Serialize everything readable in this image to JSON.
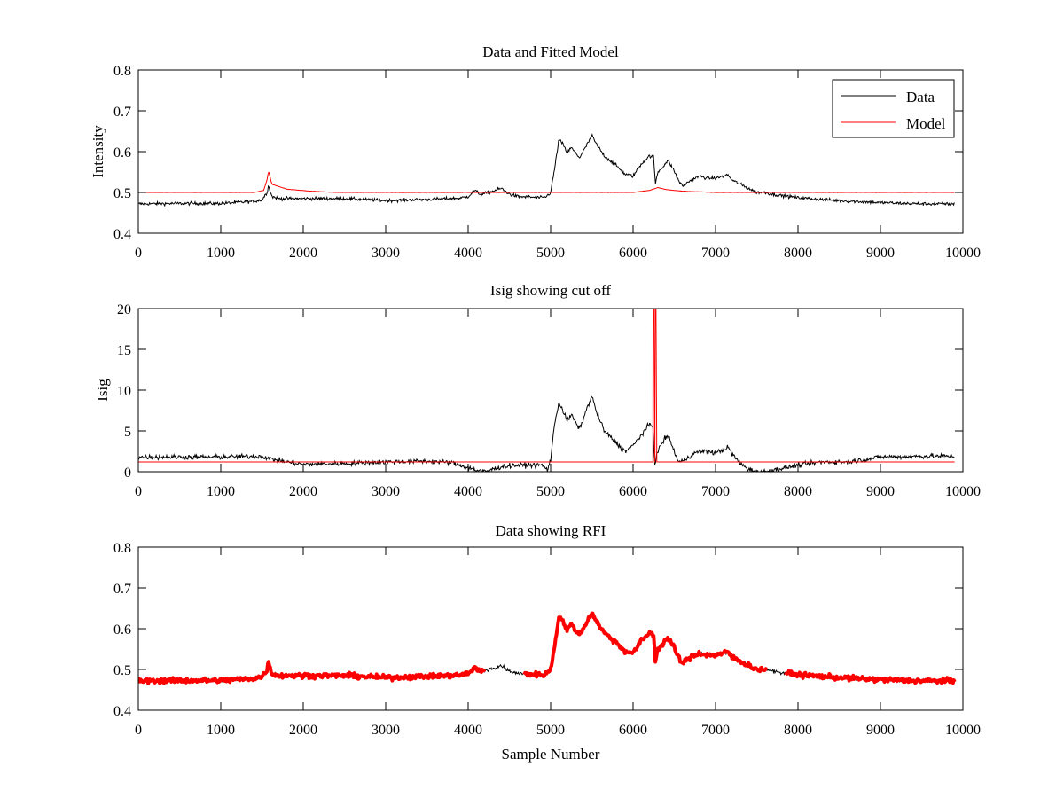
{
  "chart_data": [
    {
      "type": "line",
      "title": "Data and Fitted Model",
      "xlabel": "",
      "ylabel": "Intensity",
      "xlim": [
        0,
        10000
      ],
      "ylim": [
        0.4,
        0.8
      ],
      "xticks": [
        0,
        1000,
        2000,
        3000,
        4000,
        5000,
        6000,
        7000,
        8000,
        9000,
        10000
      ],
      "yticks": [
        0.4,
        0.5,
        0.6,
        0.7,
        0.8
      ],
      "legend": {
        "placement": "top-right",
        "entries": [
          "Data",
          "Model"
        ]
      },
      "series": [
        {
          "name": "Data",
          "color": "#000000",
          "noise": 0.004,
          "x": [
            0,
            500,
            1000,
            1400,
            1500,
            1560,
            1580,
            1620,
            1700,
            2000,
            2500,
            3000,
            3500,
            3900,
            4000,
            4080,
            4150,
            4250,
            4400,
            4500,
            4600,
            4900,
            4950,
            5000,
            5050,
            5100,
            5150,
            5200,
            5250,
            5350,
            5450,
            5500,
            5550,
            5650,
            5800,
            5900,
            6000,
            6100,
            6200,
            6250,
            6270,
            6300,
            6350,
            6420,
            6480,
            6550,
            6600,
            6700,
            6800,
            6900,
            7000,
            7100,
            7150,
            7200,
            7300,
            7400,
            7500,
            7600,
            7700,
            8000,
            8500,
            9000,
            9500,
            9900
          ],
          "y": [
            0.472,
            0.473,
            0.473,
            0.478,
            0.482,
            0.5,
            0.517,
            0.49,
            0.485,
            0.485,
            0.485,
            0.48,
            0.483,
            0.486,
            0.49,
            0.505,
            0.495,
            0.5,
            0.51,
            0.496,
            0.49,
            0.487,
            0.49,
            0.5,
            0.56,
            0.63,
            0.618,
            0.597,
            0.61,
            0.585,
            0.62,
            0.64,
            0.62,
            0.59,
            0.565,
            0.545,
            0.54,
            0.57,
            0.59,
            0.585,
            0.52,
            0.55,
            0.56,
            0.578,
            0.56,
            0.53,
            0.515,
            0.53,
            0.54,
            0.535,
            0.535,
            0.54,
            0.543,
            0.53,
            0.52,
            0.51,
            0.5,
            0.5,
            0.495,
            0.487,
            0.48,
            0.475,
            0.472,
            0.472
          ]
        },
        {
          "name": "Model",
          "color": "#ff0000",
          "noise": 0.0004,
          "x": [
            0,
            1400,
            1520,
            1560,
            1580,
            1620,
            1800,
            2100,
            2400,
            4000,
            6000,
            6200,
            6300,
            6400,
            6600,
            7000,
            9900
          ],
          "y": [
            0.5,
            0.5,
            0.505,
            0.53,
            0.552,
            0.52,
            0.508,
            0.503,
            0.5,
            0.5,
            0.5,
            0.505,
            0.512,
            0.507,
            0.503,
            0.5,
            0.5
          ]
        }
      ]
    },
    {
      "type": "line",
      "title": "Isig showing cut off",
      "xlabel": "",
      "ylabel": "Isig",
      "xlim": [
        0,
        10000
      ],
      "ylim": [
        0,
        20
      ],
      "xticks": [
        0,
        1000,
        2000,
        3000,
        4000,
        5000,
        6000,
        7000,
        8000,
        9000,
        10000
      ],
      "yticks": [
        0,
        5,
        10,
        15,
        20
      ],
      "series": [
        {
          "color": "#000000",
          "noise": 0.3,
          "x": [
            0,
            500,
            1000,
            1500,
            1600,
            1800,
            2000,
            2500,
            3000,
            3500,
            3800,
            4000,
            4100,
            4200,
            4300,
            4400,
            4600,
            4900,
            4960,
            5000,
            5050,
            5100,
            5150,
            5200,
            5250,
            5350,
            5450,
            5500,
            5550,
            5650,
            5800,
            5900,
            6000,
            6100,
            6200,
            6240,
            6260,
            6300,
            6350,
            6420,
            6480,
            6550,
            6600,
            6700,
            6800,
            6900,
            7000,
            7100,
            7150,
            7200,
            7300,
            7400,
            7500,
            7600,
            7700,
            8000,
            8300,
            8600,
            8800,
            9000,
            9500,
            9900
          ],
          "y": [
            1.8,
            1.8,
            1.8,
            1.9,
            1.6,
            1.2,
            0.9,
            1.0,
            1.2,
            1.3,
            1.1,
            0.5,
            0.2,
            0.0,
            0.3,
            0.6,
            0.8,
            0.8,
            0.2,
            1.5,
            6.0,
            8.5,
            7.5,
            6.2,
            7.0,
            5.2,
            8.0,
            9.3,
            7.5,
            5.0,
            3.5,
            2.5,
            3.2,
            4.5,
            5.8,
            5.5,
            1.0,
            2.5,
            3.5,
            4.5,
            3.0,
            1.2,
            1.3,
            2.0,
            2.5,
            2.5,
            2.3,
            2.7,
            3.0,
            2.2,
            1.0,
            0.3,
            0.0,
            0.0,
            0.2,
            0.8,
            1.2,
            1.2,
            1.5,
            1.8,
            1.9,
            1.9
          ]
        },
        {
          "color": "#ff0000",
          "noise": 0,
          "x": [
            0,
            6240,
            6242,
            6252,
            6262,
            6265,
            6268,
            6278,
            6288,
            6290,
            9900
          ],
          "y": [
            1.2,
            1.2,
            20,
            20,
            1.2,
            1.2,
            20,
            20,
            1.2,
            1.2,
            1.2
          ]
        }
      ]
    },
    {
      "type": "line",
      "title": "Data showing RFI",
      "xlabel": "Sample Number",
      "ylabel": "",
      "xlim": [
        0,
        10000
      ],
      "ylim": [
        0.4,
        0.8
      ],
      "xticks": [
        0,
        1000,
        2000,
        3000,
        4000,
        5000,
        6000,
        7000,
        8000,
        9000,
        10000
      ],
      "yticks": [
        0.4,
        0.5,
        0.6,
        0.7,
        0.8
      ],
      "series": [
        {
          "color": "#000000",
          "noise": 0.004,
          "x": [
            0,
            500,
            1000,
            1400,
            1500,
            1560,
            1580,
            1620,
            1700,
            2000,
            2500,
            3000,
            3500,
            3900,
            4000,
            4080,
            4150,
            4250,
            4400,
            4500,
            4600,
            4900,
            4950,
            5000,
            5050,
            5100,
            5150,
            5200,
            5250,
            5350,
            5450,
            5500,
            5550,
            5650,
            5800,
            5900,
            6000,
            6100,
            6200,
            6250,
            6270,
            6300,
            6350,
            6420,
            6480,
            6550,
            6600,
            6700,
            6800,
            6900,
            7000,
            7100,
            7150,
            7200,
            7300,
            7400,
            7500,
            7600,
            7700,
            8000,
            8500,
            9000,
            9500,
            9900
          ],
          "y": [
            0.472,
            0.473,
            0.473,
            0.478,
            0.482,
            0.5,
            0.517,
            0.49,
            0.485,
            0.485,
            0.485,
            0.48,
            0.483,
            0.486,
            0.49,
            0.505,
            0.495,
            0.5,
            0.51,
            0.496,
            0.49,
            0.487,
            0.49,
            0.5,
            0.56,
            0.63,
            0.618,
            0.597,
            0.61,
            0.585,
            0.62,
            0.64,
            0.62,
            0.59,
            0.565,
            0.545,
            0.54,
            0.57,
            0.59,
            0.585,
            0.52,
            0.55,
            0.56,
            0.578,
            0.56,
            0.53,
            0.515,
            0.53,
            0.54,
            0.535,
            0.535,
            0.54,
            0.543,
            0.53,
            0.52,
            0.51,
            0.5,
            0.5,
            0.495,
            0.487,
            0.48,
            0.475,
            0.472,
            0.472
          ]
        },
        {
          "color": "#ff0000",
          "noise": 0.006,
          "flagged_ranges": [
            [
              0,
              4200
            ],
            [
              4680,
              7620
            ],
            [
              7850,
              9900
            ]
          ]
        }
      ]
    }
  ]
}
